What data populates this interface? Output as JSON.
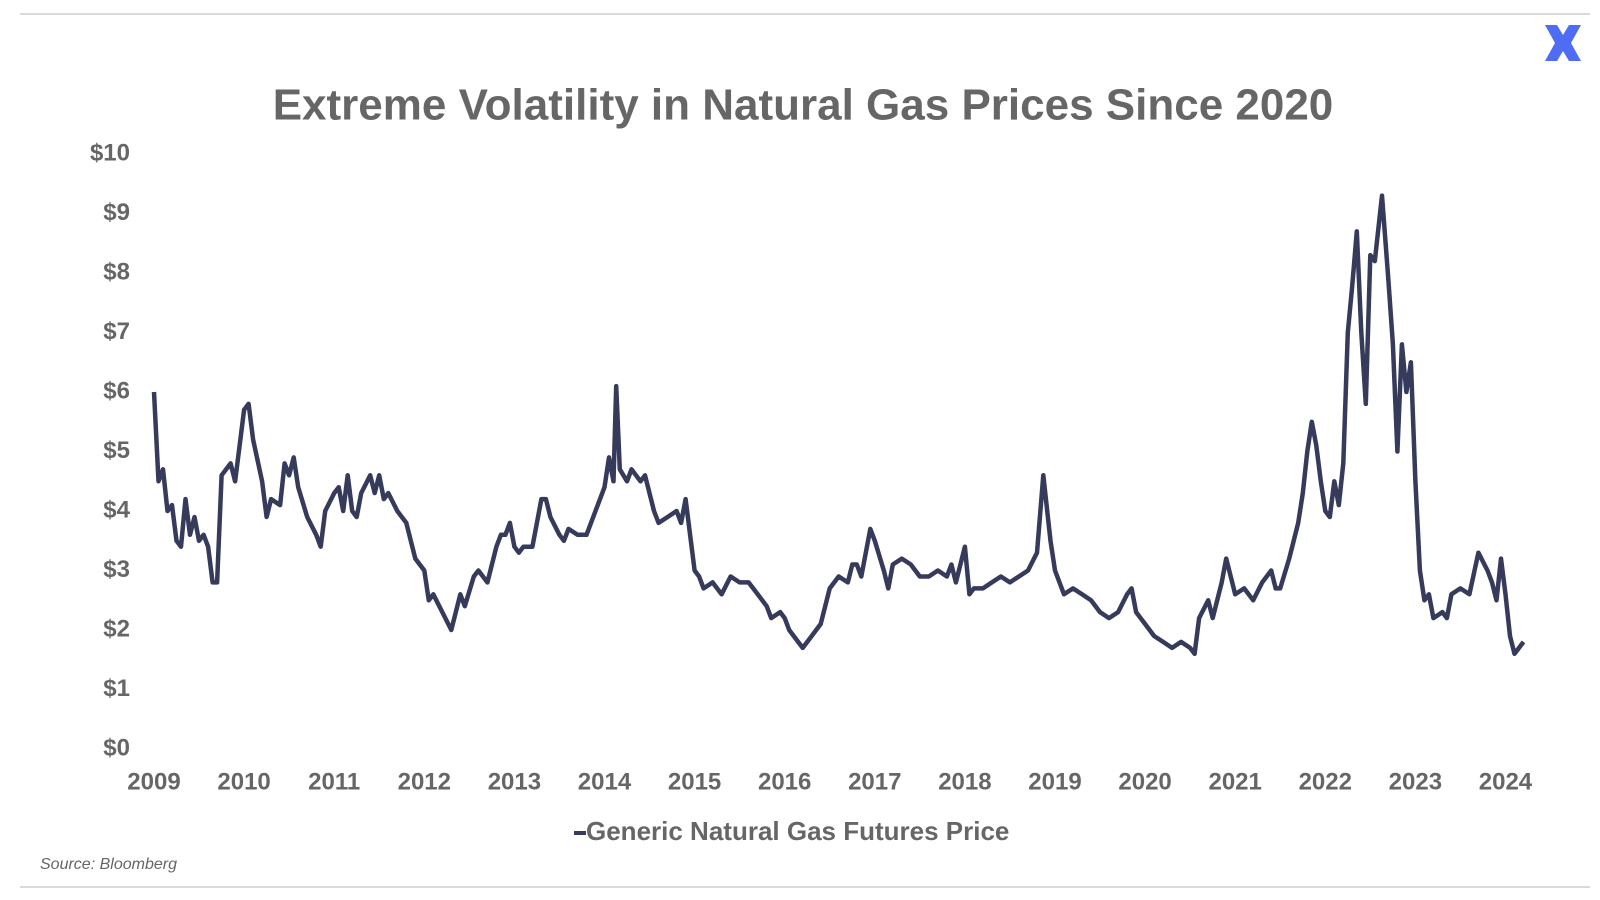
{
  "chart_data": {
    "type": "line",
    "title": "Extreme Volatility in Natural Gas Prices Since 2020",
    "source": "Source: Bloomberg",
    "legend": "bottom",
    "grid": false,
    "xlim": [
      2009,
      2024.25
    ],
    "xticks": [
      2009,
      2010,
      2011,
      2012,
      2013,
      2014,
      2015,
      2016,
      2017,
      2018,
      2019,
      2020,
      2021,
      2022,
      2023,
      2024
    ],
    "ylim": [
      0,
      10
    ],
    "yticks": [
      {
        "value": 0,
        "label": "$0"
      },
      {
        "value": 1,
        "label": "$1"
      },
      {
        "value": 2,
        "label": "$2"
      },
      {
        "value": 3,
        "label": "$3"
      },
      {
        "value": 4,
        "label": "$4"
      },
      {
        "value": 5,
        "label": "$5"
      },
      {
        "value": 6,
        "label": "$6"
      },
      {
        "value": 7,
        "label": "$7"
      },
      {
        "value": 8,
        "label": "$8"
      },
      {
        "value": 9,
        "label": "$9"
      },
      {
        "value": 10,
        "label": "$10"
      }
    ],
    "x": [
      2009.0,
      2009.05,
      2009.1,
      2009.15,
      2009.2,
      2009.25,
      2009.3,
      2009.35,
      2009.4,
      2009.45,
      2009.5,
      2009.55,
      2009.6,
      2009.65,
      2009.7,
      2009.75,
      2009.85,
      2009.9,
      2009.95,
      2010.0,
      2010.05,
      2010.1,
      2010.2,
      2010.25,
      2010.3,
      2010.4,
      2010.45,
      2010.5,
      2010.55,
      2010.6,
      2010.7,
      2010.8,
      2010.85,
      2010.9,
      2011.0,
      2011.05,
      2011.1,
      2011.15,
      2011.2,
      2011.25,
      2011.3,
      2011.4,
      2011.45,
      2011.5,
      2011.55,
      2011.6,
      2011.7,
      2011.8,
      2011.85,
      2011.9,
      2012.0,
      2012.05,
      2012.1,
      2012.2,
      2012.3,
      2012.4,
      2012.45,
      2012.55,
      2012.6,
      2012.7,
      2012.8,
      2012.85,
      2012.9,
      2012.95,
      2013.0,
      2013.05,
      2013.1,
      2013.2,
      2013.25,
      2013.3,
      2013.35,
      2013.4,
      2013.5,
      2013.55,
      2013.6,
      2013.7,
      2013.8,
      2013.9,
      2014.0,
      2014.05,
      2014.1,
      2014.13,
      2014.17,
      2014.25,
      2014.3,
      2014.4,
      2014.45,
      2014.55,
      2014.6,
      2014.7,
      2014.8,
      2014.85,
      2014.9,
      2014.95,
      2015.0,
      2015.05,
      2015.1,
      2015.2,
      2015.3,
      2015.4,
      2015.5,
      2015.6,
      2015.7,
      2015.8,
      2015.85,
      2015.95,
      2016.0,
      2016.05,
      2016.1,
      2016.2,
      2016.3,
      2016.4,
      2016.5,
      2016.6,
      2016.7,
      2016.75,
      2016.8,
      2016.85,
      2016.95,
      2017.0,
      2017.1,
      2017.15,
      2017.2,
      2017.3,
      2017.4,
      2017.5,
      2017.6,
      2017.7,
      2017.8,
      2017.85,
      2017.9,
      2018.0,
      2018.05,
      2018.1,
      2018.2,
      2018.3,
      2018.4,
      2018.5,
      2018.6,
      2018.7,
      2018.8,
      2018.87,
      2018.95,
      2019.0,
      2019.1,
      2019.2,
      2019.3,
      2019.4,
      2019.5,
      2019.6,
      2019.7,
      2019.8,
      2019.85,
      2019.9,
      2020.0,
      2020.1,
      2020.2,
      2020.3,
      2020.4,
      2020.5,
      2020.55,
      2020.6,
      2020.7,
      2020.75,
      2020.85,
      2020.9,
      2021.0,
      2021.1,
      2021.2,
      2021.3,
      2021.4,
      2021.45,
      2021.5,
      2021.6,
      2021.7,
      2021.75,
      2021.8,
      2021.85,
      2021.9,
      2021.95,
      2022.0,
      2022.05,
      2022.1,
      2022.15,
      2022.2,
      2022.25,
      2022.3,
      2022.35,
      2022.4,
      2022.45,
      2022.5,
      2022.55,
      2022.63,
      2022.7,
      2022.75,
      2022.8,
      2022.85,
      2022.9,
      2022.95,
      2023.0,
      2023.05,
      2023.1,
      2023.15,
      2023.2,
      2023.3,
      2023.35,
      2023.4,
      2023.5,
      2023.6,
      2023.7,
      2023.8,
      2023.85,
      2023.9,
      2023.95,
      2024.0,
      2024.05,
      2024.1,
      2024.15,
      2024.2
    ],
    "series": [
      {
        "name": "Generic Natural Gas Futures Price",
        "color": "#363b5c",
        "values": [
          6.0,
          4.5,
          4.7,
          4.0,
          4.1,
          3.5,
          3.4,
          4.2,
          3.6,
          3.9,
          3.5,
          3.6,
          3.4,
          2.8,
          2.8,
          4.6,
          4.8,
          4.5,
          5.1,
          5.7,
          5.8,
          5.2,
          4.5,
          3.9,
          4.2,
          4.1,
          4.8,
          4.6,
          4.9,
          4.4,
          3.9,
          3.6,
          3.4,
          4.0,
          4.3,
          4.4,
          4.0,
          4.6,
          4.0,
          3.9,
          4.3,
          4.6,
          4.3,
          4.6,
          4.2,
          4.3,
          4.0,
          3.8,
          3.5,
          3.2,
          3.0,
          2.5,
          2.6,
          2.3,
          2.0,
          2.6,
          2.4,
          2.9,
          3.0,
          2.8,
          3.4,
          3.6,
          3.6,
          3.8,
          3.4,
          3.3,
          3.4,
          3.4,
          3.8,
          4.2,
          4.2,
          3.9,
          3.6,
          3.5,
          3.7,
          3.6,
          3.6,
          4.0,
          4.4,
          4.9,
          4.5,
          6.1,
          4.7,
          4.5,
          4.7,
          4.5,
          4.6,
          4.0,
          3.8,
          3.9,
          4.0,
          3.8,
          4.2,
          3.6,
          3.0,
          2.9,
          2.7,
          2.8,
          2.6,
          2.9,
          2.8,
          2.8,
          2.6,
          2.4,
          2.2,
          2.3,
          2.2,
          2.0,
          1.9,
          1.7,
          1.9,
          2.1,
          2.7,
          2.9,
          2.8,
          3.1,
          3.1,
          2.9,
          3.7,
          3.5,
          3.0,
          2.7,
          3.1,
          3.2,
          3.1,
          2.9,
          2.9,
          3.0,
          2.9,
          3.1,
          2.8,
          3.4,
          2.6,
          2.7,
          2.7,
          2.8,
          2.9,
          2.8,
          2.9,
          3.0,
          3.3,
          4.6,
          3.5,
          3.0,
          2.6,
          2.7,
          2.6,
          2.5,
          2.3,
          2.2,
          2.3,
          2.6,
          2.7,
          2.3,
          2.1,
          1.9,
          1.8,
          1.7,
          1.8,
          1.7,
          1.6,
          2.2,
          2.5,
          2.2,
          2.8,
          3.2,
          2.6,
          2.7,
          2.5,
          2.8,
          3.0,
          2.7,
          2.7,
          3.2,
          3.8,
          4.3,
          5.0,
          5.5,
          5.1,
          4.5,
          4.0,
          3.9,
          4.5,
          4.1,
          4.8,
          7.0,
          7.8,
          8.7,
          7.0,
          5.8,
          8.3,
          8.2,
          9.3,
          7.9,
          6.8,
          5.0,
          6.8,
          6.0,
          6.5,
          4.5,
          3.0,
          2.5,
          2.6,
          2.2,
          2.3,
          2.2,
          2.6,
          2.7,
          2.6,
          3.3,
          3.0,
          2.8,
          2.5,
          3.2,
          2.6,
          1.9,
          1.6,
          1.7,
          1.8
        ]
      }
    ]
  }
}
